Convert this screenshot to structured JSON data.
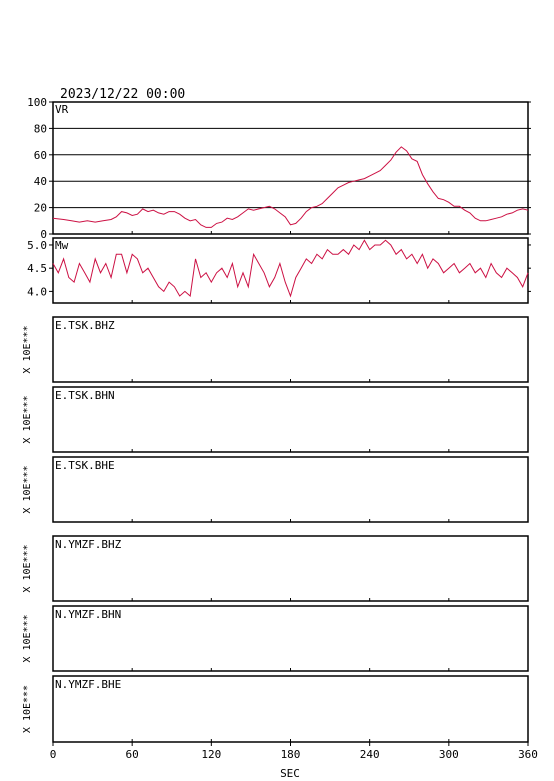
{
  "header": {
    "datetime": "2023/12/22 00:00"
  },
  "x_axis": {
    "label": "SEC",
    "range": [
      0,
      360
    ],
    "ticks": [
      0,
      60,
      120,
      180,
      240,
      300,
      360
    ],
    "tick_labels": [
      "0",
      "60",
      "120",
      "180",
      "240",
      "300",
      "360"
    ]
  },
  "colors": {
    "trace": "#cc1144",
    "axis": "#000000"
  },
  "chart_data": [
    {
      "type": "line",
      "panel": "vr",
      "title": "VR",
      "ylim": [
        0,
        100
      ],
      "yticks": [
        0,
        20,
        40,
        60,
        80,
        100
      ],
      "ytick_labels": [
        "0",
        "20",
        "40",
        "60",
        "80",
        "100"
      ],
      "grid": true,
      "x": [
        0,
        8,
        14,
        20,
        26,
        32,
        38,
        44,
        48,
        52,
        56,
        60,
        64,
        68,
        72,
        76,
        80,
        84,
        88,
        92,
        96,
        100,
        104,
        108,
        112,
        116,
        120,
        124,
        128,
        132,
        136,
        140,
        144,
        148,
        152,
        156,
        160,
        164,
        168,
        172,
        176,
        180,
        184,
        188,
        192,
        196,
        200,
        204,
        208,
        212,
        216,
        220,
        224,
        228,
        232,
        236,
        240,
        244,
        248,
        252,
        256,
        260,
        264,
        268,
        272,
        276,
        280,
        284,
        288,
        292,
        296,
        300,
        304,
        308,
        312,
        316,
        320,
        324,
        328,
        332,
        336,
        340,
        344,
        348,
        352,
        356,
        360
      ],
      "series": [
        {
          "values": [
            12,
            11,
            10,
            9,
            10,
            9,
            10,
            11,
            13,
            17,
            16,
            14,
            15,
            19,
            17,
            18,
            16,
            15,
            17,
            17,
            15,
            12,
            10,
            11,
            7,
            5,
            5,
            8,
            9,
            12,
            11,
            13,
            16,
            19,
            18,
            19,
            20,
            21,
            19,
            16,
            13,
            7,
            8,
            12,
            17,
            20,
            21,
            23,
            27,
            31,
            35,
            37,
            39,
            40,
            41,
            42,
            44,
            46,
            48,
            52,
            56,
            62,
            66,
            63,
            57,
            55,
            45,
            38,
            32,
            27,
            26,
            24,
            21,
            21,
            18,
            16,
            12,
            10,
            10,
            11,
            12,
            13,
            15,
            16,
            18,
            19,
            18
          ]
        }
      ]
    },
    {
      "type": "line",
      "panel": "mw",
      "title": "Mw",
      "ylim": [
        3.75,
        5.15
      ],
      "yticks": [
        4.0,
        4.5,
        5.0
      ],
      "ytick_labels": [
        "4.0",
        "4.5",
        "5.0"
      ],
      "grid": false,
      "x": [
        0,
        4,
        8,
        12,
        16,
        20,
        24,
        28,
        32,
        36,
        40,
        44,
        48,
        52,
        56,
        60,
        64,
        68,
        72,
        76,
        80,
        84,
        88,
        92,
        96,
        100,
        104,
        108,
        112,
        116,
        120,
        124,
        128,
        132,
        136,
        140,
        144,
        148,
        152,
        156,
        160,
        164,
        168,
        172,
        176,
        180,
        184,
        188,
        192,
        196,
        200,
        204,
        208,
        212,
        216,
        220,
        224,
        228,
        232,
        236,
        240,
        244,
        248,
        252,
        256,
        260,
        264,
        268,
        272,
        276,
        280,
        284,
        288,
        292,
        296,
        300,
        304,
        308,
        312,
        316,
        320,
        324,
        328,
        332,
        336,
        340,
        344,
        348,
        352,
        356,
        360
      ],
      "series": [
        {
          "values": [
            4.6,
            4.4,
            4.7,
            4.3,
            4.2,
            4.6,
            4.4,
            4.2,
            4.7,
            4.4,
            4.6,
            4.3,
            4.8,
            4.8,
            4.4,
            4.8,
            4.7,
            4.4,
            4.5,
            4.3,
            4.1,
            4.0,
            4.2,
            4.1,
            3.9,
            4.0,
            3.9,
            4.7,
            4.3,
            4.4,
            4.2,
            4.4,
            4.5,
            4.3,
            4.6,
            4.1,
            4.4,
            4.1,
            4.8,
            4.6,
            4.4,
            4.1,
            4.3,
            4.6,
            4.2,
            3.9,
            4.3,
            4.5,
            4.7,
            4.6,
            4.8,
            4.7,
            4.9,
            4.8,
            4.8,
            4.9,
            4.8,
            5.0,
            4.9,
            5.1,
            4.9,
            5.0,
            5.0,
            5.1,
            5.0,
            4.8,
            4.9,
            4.7,
            4.8,
            4.6,
            4.8,
            4.5,
            4.7,
            4.6,
            4.4,
            4.5,
            4.6,
            4.4,
            4.5,
            4.6,
            4.4,
            4.5,
            4.3,
            4.6,
            4.4,
            4.3,
            4.5,
            4.4,
            4.3,
            4.1,
            4.4
          ]
        }
      ]
    }
  ],
  "stations": [
    {
      "group": "E",
      "label": "E.TSK.BHZ",
      "exponent": "X 10E***"
    },
    {
      "group": "E",
      "label": "E.TSK.BHN",
      "exponent": "X 10E***"
    },
    {
      "group": "E",
      "label": "E.TSK.BHE",
      "exponent": "X 10E***"
    },
    {
      "group": "N",
      "label": "N.YMZF.BHZ",
      "exponent": "X 10E***"
    },
    {
      "group": "N",
      "label": "N.YMZF.BHN",
      "exponent": "X 10E***"
    },
    {
      "group": "N",
      "label": "N.YMZF.BHE",
      "exponent": "X 10E***"
    }
  ]
}
